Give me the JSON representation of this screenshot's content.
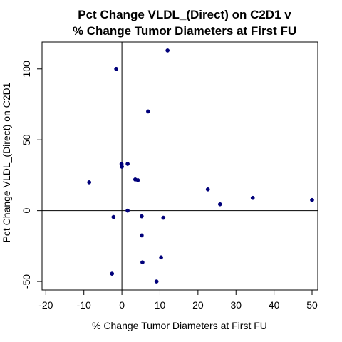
{
  "chart_data": {
    "type": "scatter",
    "title_lines": [
      "Pct Change VLDL_(Direct) on C2D1 v",
      "% Change Tumor Diameters at First FU"
    ],
    "xlabel": "% Change Tumor Diameters at First FU",
    "ylabel": "Pct Change VLDL_(Direct) on C2D1",
    "xlim": [
      -21,
      51.5
    ],
    "ylim": [
      -56,
      119
    ],
    "x_ticks": [
      -20,
      -10,
      0,
      10,
      20,
      30,
      40,
      50
    ],
    "y_ticks": [
      -50,
      0,
      50,
      100
    ],
    "grid": false,
    "reference_lines": {
      "x": 0,
      "y": 0
    },
    "point_color": "#00007a",
    "points": [
      {
        "x": 12.0,
        "y": 113
      },
      {
        "x": -1.5,
        "y": 100
      },
      {
        "x": 6.9,
        "y": 70
      },
      {
        "x": 1.5,
        "y": 33
      },
      {
        "x": -0.1,
        "y": 33
      },
      {
        "x": 0.0,
        "y": 31
      },
      {
        "x": 3.5,
        "y": 22
      },
      {
        "x": 4.2,
        "y": 21.5
      },
      {
        "x": -8.6,
        "y": 20
      },
      {
        "x": 22.6,
        "y": 15
      },
      {
        "x": 34.4,
        "y": 9
      },
      {
        "x": 50.0,
        "y": 7.5
      },
      {
        "x": 25.8,
        "y": 4.5
      },
      {
        "x": 1.5,
        "y": 0
      },
      {
        "x": -2.2,
        "y": -4.5
      },
      {
        "x": 5.2,
        "y": -4
      },
      {
        "x": 10.9,
        "y": -5
      },
      {
        "x": 5.2,
        "y": -17.5
      },
      {
        "x": 10.3,
        "y": -33
      },
      {
        "x": 5.4,
        "y": -36.5
      },
      {
        "x": -2.6,
        "y": -44.5
      },
      {
        "x": 9.1,
        "y": -50
      }
    ]
  }
}
